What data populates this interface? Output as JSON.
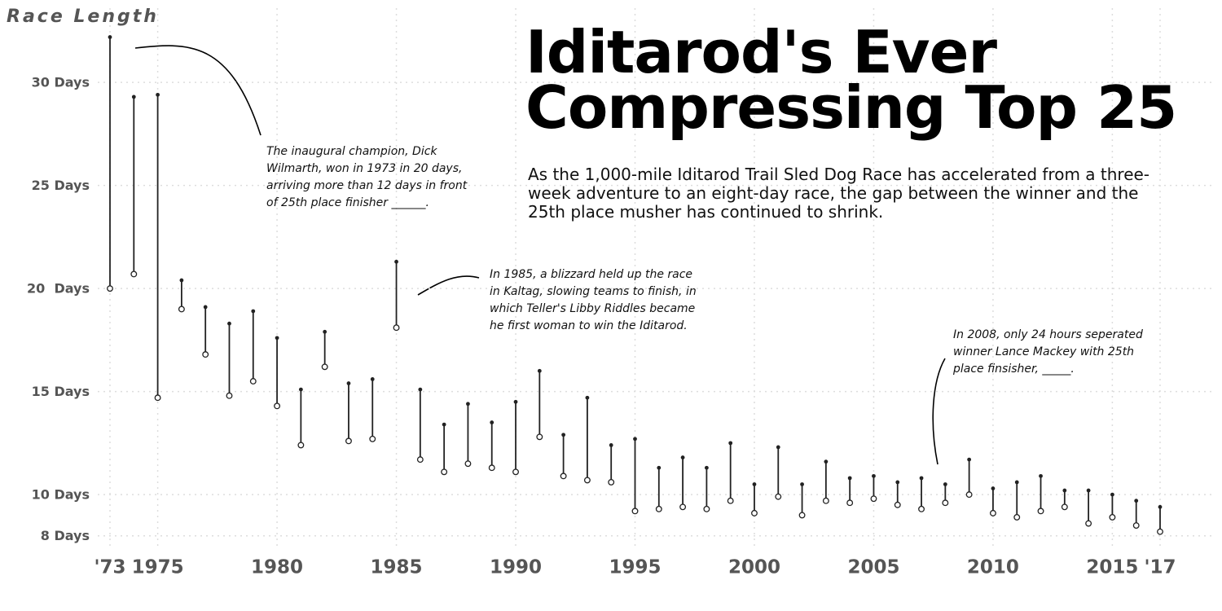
{
  "chart_data": {
    "type": "range",
    "title": [
      "Iditarod's Ever",
      "Compressing Top 25"
    ],
    "subtitle": "As the 1,000-mile Iditarod Trail Sled Dog Race has accelerated from a three-week adventure to an eight-day race, the gap between the winner and the 25th place musher has continued to shrink.",
    "y_label": "Race Length",
    "annotations": [
      "The inaugural champion, Dick Wilmarth, won in 1973 in 20 days, arriving more than 12 days in front of 25th place finisher ______.",
      "In 1985, a blizzard held up the race in Kaltag, slowing teams to finish, in which Teller's Libby Riddles became he first woman to win the Iditarod.",
      "In 2008, only 24 hours seperated winner Lance Mackey with 25th place finsisher, _____."
    ],
    "x": [
      1973,
      1974,
      1975,
      1976,
      1977,
      1978,
      1979,
      1980,
      1981,
      1982,
      1983,
      1984,
      1985,
      1986,
      1987,
      1988,
      1989,
      1990,
      1991,
      1992,
      1993,
      1994,
      1995,
      1996,
      1997,
      1998,
      1999,
      2000,
      2001,
      2002,
      2003,
      2004,
      2005,
      2006,
      2007,
      2008,
      2009,
      2010,
      2011,
      2012,
      2013,
      2014,
      2015,
      2016,
      2017
    ],
    "high": [
      32.2,
      29.3,
      29.4,
      20.4,
      19.1,
      18.3,
      18.9,
      17.6,
      15.1,
      17.9,
      15.4,
      15.6,
      21.3,
      15.1,
      13.4,
      14.4,
      13.5,
      14.5,
      16.0,
      12.9,
      14.7,
      12.4,
      12.7,
      11.3,
      11.8,
      11.3,
      12.5,
      10.5,
      12.3,
      10.5,
      11.6,
      10.8,
      10.9,
      10.6,
      10.8,
      10.5,
      11.7,
      10.3,
      10.6,
      10.9,
      10.2,
      10.2,
      10.0,
      9.7,
      9.4
    ],
    "low": [
      20.0,
      20.7,
      14.7,
      19.0,
      16.8,
      14.8,
      15.5,
      14.3,
      12.4,
      16.2,
      12.6,
      12.7,
      18.1,
      11.7,
      11.1,
      11.5,
      11.3,
      11.1,
      12.8,
      10.9,
      10.7,
      10.6,
      9.2,
      9.3,
      9.4,
      9.3,
      9.7,
      9.1,
      9.9,
      9.0,
      9.7,
      9.6,
      9.8,
      9.5,
      9.3,
      9.6,
      10.0,
      9.1,
      8.9,
      9.2,
      9.4,
      8.6,
      8.9,
      8.5,
      8.2
    ],
    "color": "#222222",
    "xlim": [
      1973,
      2017
    ],
    "ylim": [
      7,
      34
    ],
    "xticks": [
      {
        "value": 1973,
        "label": "'73"
      },
      1975,
      1980,
      1985,
      1990,
      1995,
      2000,
      2005,
      2010,
      2015,
      {
        "value": 2017,
        "label": "'17"
      }
    ],
    "yticks": [
      {
        "value": 8,
        "label": "8 Days"
      },
      {
        "value": 10,
        "label": "10 Days"
      },
      {
        "value": 15,
        "label": "15 Days"
      },
      {
        "value": 20,
        "label": "20  Days"
      },
      {
        "value": 25,
        "label": "25 Days"
      },
      {
        "value": 30,
        "label": "30 Days"
      }
    ],
    "grid": true
  }
}
